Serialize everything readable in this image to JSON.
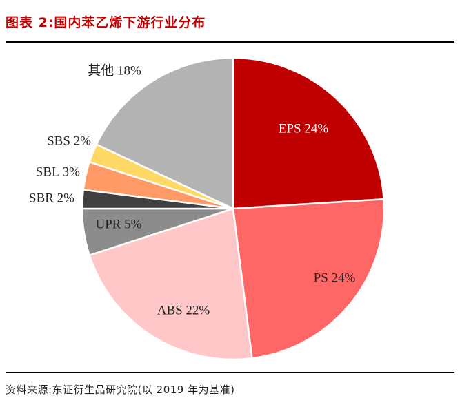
{
  "header": {
    "title": "图表 2:国内苯乙烯下游行业分布"
  },
  "footer": {
    "source": "资料来源:东证衍生品研究院(以 2019 年为基准)"
  },
  "chart_data": {
    "type": "pie",
    "title": "图表 2:国内苯乙烯下游行业分布",
    "slices": [
      {
        "label": "EPS 24%",
        "name": "EPS",
        "value": 24,
        "color": "#c00000",
        "text_color": "#ffffff"
      },
      {
        "label": "PS 24%",
        "name": "PS",
        "value": 24,
        "color": "#ff6666",
        "text_color": "#222222"
      },
      {
        "label": "ABS 22%",
        "name": "ABS",
        "value": 22,
        "color": "#ffc7c7",
        "text_color": "#222222"
      },
      {
        "label": "UPR 5%",
        "name": "UPR",
        "value": 5,
        "color": "#8c8c8c",
        "text_color": "#222222"
      },
      {
        "label": "SBR 2%",
        "name": "SBR",
        "value": 2,
        "color": "#404040",
        "text_color": "#222222"
      },
      {
        "label": "SBL 3%",
        "name": "SBL",
        "value": 3,
        "color": "#ff9966",
        "text_color": "#222222"
      },
      {
        "label": "SBS 2%",
        "name": "SBS",
        "value": 2,
        "color": "#ffd966",
        "text_color": "#222222"
      },
      {
        "label": "其他 18%",
        "name": "其他",
        "value": 18,
        "color": "#b3b3b3",
        "text_color": "#222222"
      }
    ],
    "start_angle": "12 o'clock",
    "direction": "clockwise",
    "legend": "none (labels on/next to slices)"
  }
}
